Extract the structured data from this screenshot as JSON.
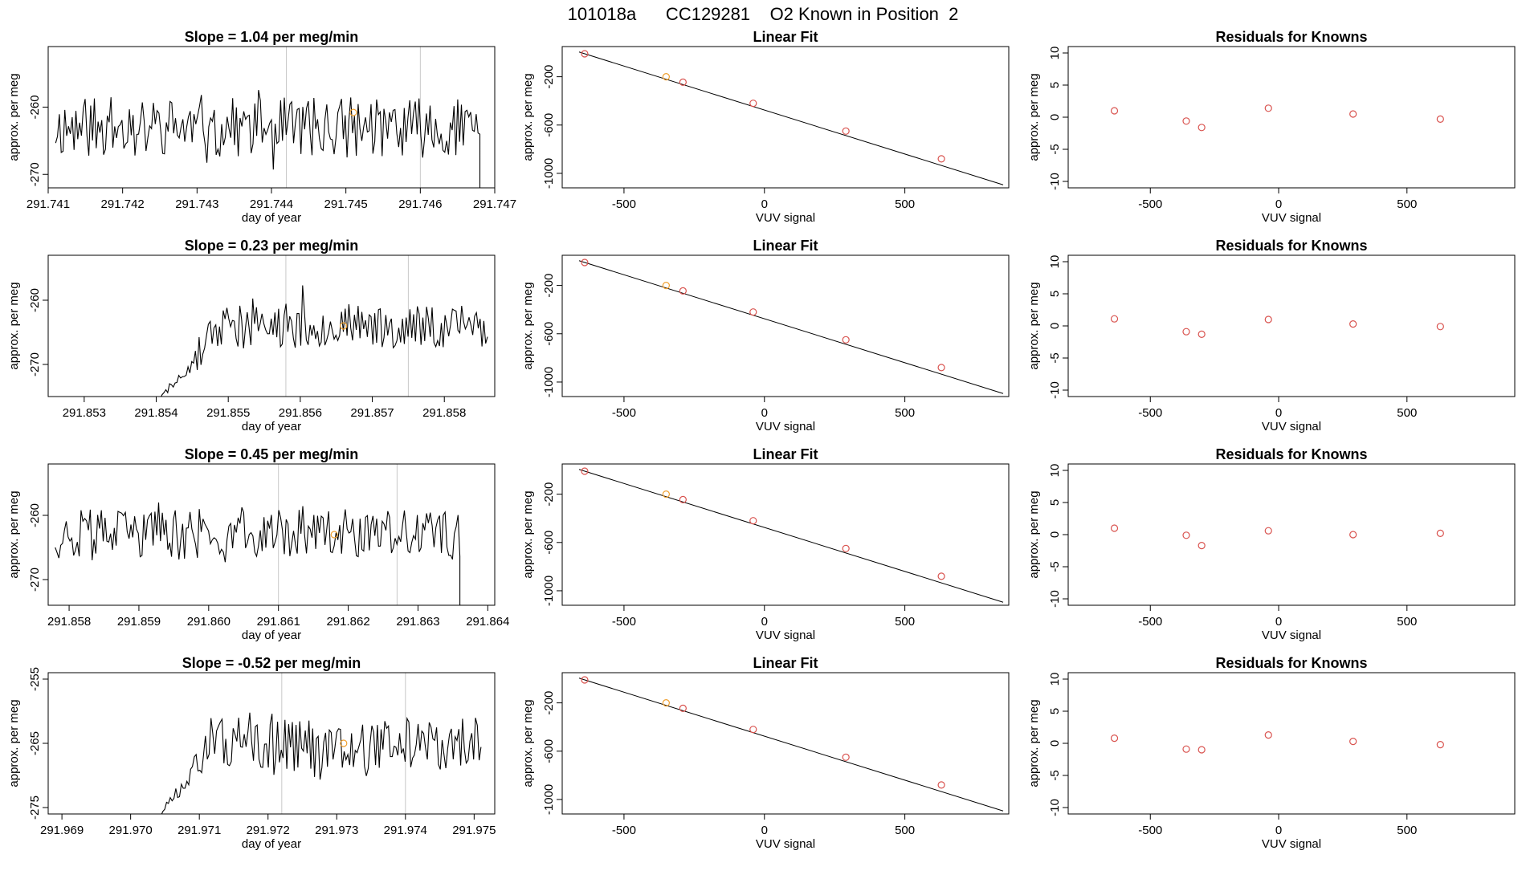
{
  "title": "101018a      CC129281    O2 Known in Position  2",
  "colors": {
    "known": "#d9534f",
    "highlight": "#f0a030",
    "trace": "#000000",
    "window": "#c8c8c8"
  },
  "chart_data": [
    {
      "row": 1,
      "type": "line",
      "title": "Slope =  1.04  per meg/min",
      "xlabel": "day of year",
      "ylabel": "approx. per meg",
      "xlim": [
        291.741,
        291.747
      ],
      "ylim": [
        -272,
        -251
      ],
      "xticks": [
        "291.741",
        "291.742",
        "291.743",
        "291.744",
        "291.745",
        "291.746",
        "291.747"
      ],
      "yticks": [
        "-260",
        "-270"
      ],
      "window_lines": [
        291.7442,
        291.746
      ],
      "trace": {
        "start": 291.7411,
        "end": 291.7468,
        "data_start": 291.7411,
        "mean": -263,
        "amplitude": 4.5,
        "seed": 11,
        "drop_end": true
      },
      "highlight_point": {
        "x": 291.7451,
        "y": -260.8
      }
    },
    {
      "row": 1,
      "type": "line",
      "title": "Linear Fit",
      "xlabel": "VUV signal",
      "ylabel": "approx. per meg",
      "xlim": [
        -720,
        870
      ],
      "ylim": [
        -1120,
        50
      ],
      "xticks": [
        "-500",
        "0",
        "500"
      ],
      "yticks": [
        "-200",
        "-600",
        "-1000"
      ],
      "fit_line": {
        "x0": -660,
        "y0": 5,
        "x1": 850,
        "y1": -1095
      },
      "points": [
        [
          -640,
          -10
        ],
        [
          -350,
          -200
        ],
        [
          -290,
          -245
        ],
        [
          -40,
          -420
        ],
        [
          290,
          -650
        ],
        [
          630,
          -880
        ]
      ],
      "highlight_index": 1
    },
    {
      "row": 1,
      "type": "scatter",
      "title": "Residuals for Knowns",
      "xlabel": "VUV signal",
      "ylabel": "approx. per meg",
      "xlim": [
        -820,
        920
      ],
      "ylim": [
        -11,
        11
      ],
      "xticks": [
        "-500",
        "0",
        "500"
      ],
      "yticks": [
        "10",
        "5",
        "0",
        "-5",
        "-10"
      ],
      "points": [
        [
          -640,
          1.0
        ],
        [
          -360,
          -0.6
        ],
        [
          -300,
          -1.6
        ],
        [
          -40,
          1.4
        ],
        [
          290,
          0.5
        ],
        [
          630,
          -0.3
        ]
      ]
    },
    {
      "row": 2,
      "type": "line",
      "title": "Slope =  0.23  per meg/min",
      "xlabel": "day of year",
      "ylabel": "approx. per meg",
      "xlim": [
        291.8525,
        291.8587
      ],
      "ylim": [
        -275,
        -253
      ],
      "xticks": [
        "291.853",
        "291.854",
        "291.855",
        "291.856",
        "291.857",
        "291.858"
      ],
      "yticks": [
        "-260",
        "-270"
      ],
      "window_lines": [
        291.8558,
        291.8575
      ],
      "trace": {
        "start": 291.8538,
        "end": 291.8586,
        "data_start": 291.854,
        "mean": -264,
        "amplitude": 3.5,
        "seed": 23,
        "rise_from": -276,
        "rise_len": 0.0009
      },
      "highlight_point": {
        "x": 291.8566,
        "y": -264
      }
    },
    {
      "row": 2,
      "type": "line",
      "title": "Linear Fit",
      "xlabel": "VUV signal",
      "ylabel": "approx. per meg",
      "xlim": [
        -720,
        870
      ],
      "ylim": [
        -1120,
        50
      ],
      "xticks": [
        "-500",
        "0",
        "500"
      ],
      "yticks": [
        "-200",
        "-600",
        "-1000"
      ],
      "fit_line": {
        "x0": -660,
        "y0": 5,
        "x1": 850,
        "y1": -1095
      },
      "points": [
        [
          -640,
          -10
        ],
        [
          -350,
          -200
        ],
        [
          -290,
          -245
        ],
        [
          -40,
          -420
        ],
        [
          290,
          -650
        ],
        [
          630,
          -880
        ]
      ],
      "highlight_index": 1
    },
    {
      "row": 2,
      "type": "scatter",
      "title": "Residuals for Knowns",
      "xlabel": "VUV signal",
      "ylabel": "approx. per meg",
      "xlim": [
        -820,
        920
      ],
      "ylim": [
        -11,
        11
      ],
      "xticks": [
        "-500",
        "0",
        "500"
      ],
      "yticks": [
        "10",
        "5",
        "0",
        "-5",
        "-10"
      ],
      "points": [
        [
          -640,
          1.1
        ],
        [
          -360,
          -0.9
        ],
        [
          -300,
          -1.3
        ],
        [
          -40,
          1.0
        ],
        [
          290,
          0.3
        ],
        [
          630,
          -0.1
        ]
      ]
    },
    {
      "row": 3,
      "type": "line",
      "title": "Slope =  0.45  per meg/min",
      "xlabel": "day of year",
      "ylabel": "approx. per meg",
      "xlim": [
        291.8577,
        291.8641
      ],
      "ylim": [
        -274,
        -252
      ],
      "xticks": [
        "291.858",
        "291.859",
        "291.860",
        "291.861",
        "291.862",
        "291.863",
        "291.864"
      ],
      "yticks": [
        "-260",
        "-270"
      ],
      "window_lines": [
        291.861,
        291.8627
      ],
      "trace": {
        "start": 291.8578,
        "end": 291.8636,
        "data_start": 291.8578,
        "mean": -263,
        "amplitude": 4,
        "seed": 37,
        "drop_end": true
      },
      "highlight_point": {
        "x": 291.8618,
        "y": -263
      }
    },
    {
      "row": 3,
      "type": "line",
      "title": "Linear Fit",
      "xlabel": "VUV signal",
      "ylabel": "approx. per meg",
      "xlim": [
        -720,
        870
      ],
      "ylim": [
        -1120,
        50
      ],
      "xticks": [
        "-500",
        "0",
        "500"
      ],
      "yticks": [
        "-200",
        "-600",
        "-1000"
      ],
      "fit_line": {
        "x0": -660,
        "y0": 5,
        "x1": 850,
        "y1": -1095
      },
      "points": [
        [
          -640,
          -10
        ],
        [
          -350,
          -200
        ],
        [
          -290,
          -245
        ],
        [
          -40,
          -420
        ],
        [
          290,
          -650
        ],
        [
          630,
          -880
        ]
      ],
      "highlight_index": 1
    },
    {
      "row": 3,
      "type": "scatter",
      "title": "Residuals for Knowns",
      "xlabel": "VUV signal",
      "ylabel": "approx. per meg",
      "xlim": [
        -820,
        920
      ],
      "ylim": [
        -11,
        11
      ],
      "xticks": [
        "-500",
        "0",
        "500"
      ],
      "yticks": [
        "10",
        "5",
        "0",
        "-5",
        "-10"
      ],
      "points": [
        [
          -640,
          1.0
        ],
        [
          -360,
          -0.1
        ],
        [
          -300,
          -1.7
        ],
        [
          -40,
          0.6
        ],
        [
          290,
          0.0
        ],
        [
          630,
          0.2
        ]
      ]
    },
    {
      "row": 4,
      "type": "line",
      "title": "Slope =  -0.52  per meg/min",
      "xlabel": "day of year",
      "ylabel": "approx. per meg",
      "xlim": [
        291.9688,
        291.9753
      ],
      "ylim": [
        -276,
        -254
      ],
      "xticks": [
        "291.969",
        "291.970",
        "291.971",
        "291.972",
        "291.973",
        "291.974",
        "291.975"
      ],
      "yticks": [
        "-255",
        "-265",
        "-275"
      ],
      "window_lines": [
        291.9722,
        291.974
      ],
      "trace": {
        "start": 291.9702,
        "end": 291.9751,
        "data_start": 291.9704,
        "mean": -265,
        "amplitude": 4,
        "seed": 51,
        "rise_from": -277,
        "rise_len": 0.0007
      },
      "highlight_point": {
        "x": 291.9731,
        "y": -265
      }
    },
    {
      "row": 4,
      "type": "line",
      "title": "Linear Fit",
      "xlabel": "VUV signal",
      "ylabel": "approx. per meg",
      "xlim": [
        -720,
        870
      ],
      "ylim": [
        -1120,
        50
      ],
      "xticks": [
        "-500",
        "0",
        "500"
      ],
      "yticks": [
        "-200",
        "-600",
        "-1000"
      ],
      "fit_line": {
        "x0": -660,
        "y0": 5,
        "x1": 850,
        "y1": -1095
      },
      "points": [
        [
          -640,
          -10
        ],
        [
          -350,
          -200
        ],
        [
          -290,
          -245
        ],
        [
          -40,
          -420
        ],
        [
          290,
          -650
        ],
        [
          630,
          -880
        ]
      ],
      "highlight_index": 1
    },
    {
      "row": 4,
      "type": "scatter",
      "title": "Residuals for Knowns",
      "xlabel": "VUV signal",
      "ylabel": "approx. per meg",
      "xlim": [
        -820,
        920
      ],
      "ylim": [
        -11,
        11
      ],
      "xticks": [
        "-500",
        "0",
        "500"
      ],
      "yticks": [
        "10",
        "5",
        "0",
        "-5",
        "-10"
      ],
      "points": [
        [
          -640,
          0.8
        ],
        [
          -360,
          -0.9
        ],
        [
          -300,
          -1.0
        ],
        [
          -40,
          1.3
        ],
        [
          290,
          0.3
        ],
        [
          630,
          -0.2
        ]
      ]
    }
  ]
}
